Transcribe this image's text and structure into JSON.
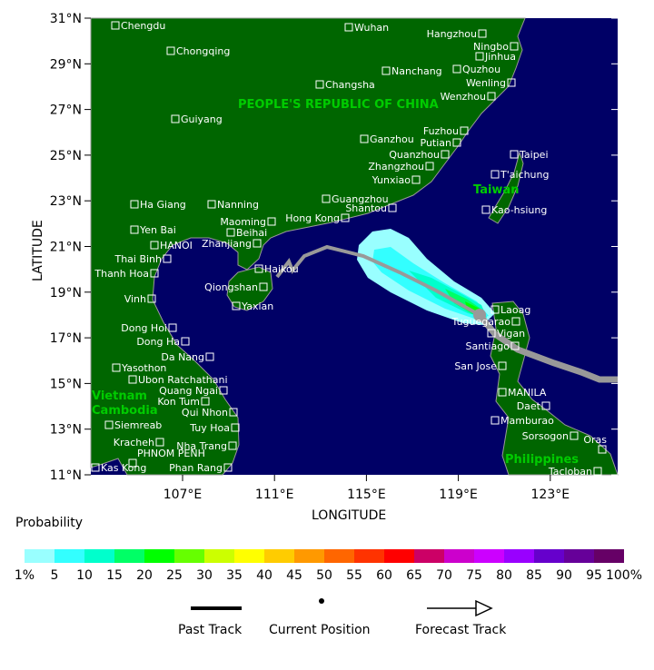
{
  "axes": {
    "ylabel": "LATITUDE",
    "xlabel": "LONGITUDE",
    "lat_ticks": [
      "31°N",
      "29°N",
      "27°N",
      "25°N",
      "23°N",
      "21°N",
      "19°N",
      "17°N",
      "15°N",
      "13°N",
      "11°N"
    ],
    "lon_ticks": [
      "107°E",
      "111°E",
      "115°E",
      "119°E",
      "123°E"
    ]
  },
  "colors": {
    "ocean": "#000066",
    "land": "#006600",
    "coast": "#999999",
    "track": "#999999",
    "region_label": "#00cc00"
  },
  "regions": [
    "PEOPLE'S REPUBLIC OF CHINA",
    "Taiwan",
    "Vietnam",
    "Cambodia",
    "Philippines"
  ],
  "cities": [
    "Chengdu",
    "Wuhan",
    "Hangzhou",
    "Ningbo",
    "Jinhua",
    "Quzhou",
    "Wenling",
    "Chongqing",
    "Nanchang",
    "Changsha",
    "Wenzhou",
    "Guiyang",
    "Fuzhou",
    "Putian",
    "Ganzhou",
    "Quanzhou",
    "Taipei",
    "Zhangzhou",
    "T'aichung",
    "Yunxiao",
    "Guangzhou",
    "Shantou",
    "Ha Giang",
    "Nanning",
    "Kao-hsiung",
    "Hong Kong",
    "Maoming",
    "Yen Bai",
    "Beihai",
    "Zhanjiang",
    "HANOI",
    "Thai Binh",
    "Haikou",
    "Thanh Hoa",
    "Qiongshan",
    "Vinh",
    "Yaxian",
    "Laoag",
    "Tuguegarao",
    "Vigan",
    "Dong Hoi",
    "Dong Ha",
    "Santiago",
    "Da Nang",
    "Yasothon",
    "San Jose",
    "Ubon Ratchathani",
    "Quang Ngai",
    "MANILA",
    "Kon Tum",
    "Daet",
    "Qui Nhon",
    "Siemreab",
    "Mamburao",
    "Tuy Hoa",
    "Sorsogon",
    "Kracheh",
    "Nha Trang",
    "Oras",
    "PHNOM PENH",
    "Phan Rang",
    "Kas Kong",
    "Tacloban"
  ],
  "probability_legend": {
    "title": "Probability",
    "colors": [
      "#99ffff",
      "#33ffff",
      "#00ffcc",
      "#00ff66",
      "#00ff00",
      "#66ff00",
      "#ccff00",
      "#ffff00",
      "#ffcc00",
      "#ff9900",
      "#ff6600",
      "#ff3300",
      "#ff0000",
      "#cc0066",
      "#cc00cc",
      "#cc00ff",
      "#9900ff",
      "#6600cc",
      "#660099",
      "#660066"
    ],
    "labels": [
      "1%",
      "5",
      "10",
      "15",
      "20",
      "25",
      "30",
      "35",
      "40",
      "45",
      "50",
      "55",
      "60",
      "65",
      "70",
      "75",
      "80",
      "85",
      "90",
      "95",
      "100%"
    ]
  },
  "track_legend": {
    "past": "Past Track",
    "current": "Current Position",
    "forecast": "Forecast Track"
  }
}
